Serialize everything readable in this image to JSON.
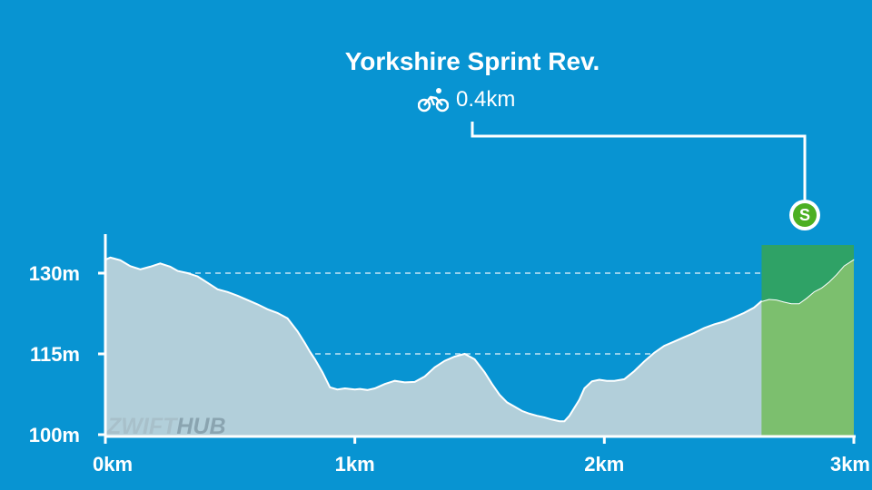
{
  "segment": {
    "title": "Yorkshire Sprint Rev.",
    "distance": "0.4km",
    "icon": "bicycle-icon",
    "badge": "S",
    "badge_color": "#4caf22"
  },
  "watermark": {
    "part1": "ZWIFT",
    "part2": "HUB"
  },
  "colors": {
    "background": "#0894d2",
    "profile_fill": "#b2cfda",
    "segment_fill": "#7cbf6e",
    "segment_overlay": "#2fa266",
    "axis": "#ffffff"
  },
  "chart_data": {
    "type": "area",
    "xlabel": "",
    "ylabel": "",
    "xlim": [
      0,
      3
    ],
    "ylim": [
      97,
      134
    ],
    "x_ticks": [
      0,
      1,
      2,
      3
    ],
    "x_tick_labels": [
      "0km",
      "1km",
      "2km",
      "3km"
    ],
    "y_ticks": [
      100,
      115,
      130
    ],
    "y_tick_labels": [
      "100m",
      "115m",
      "130m"
    ],
    "grid": "dashed horizontal at y ticks",
    "segment_range_km": [
      2.63,
      3.0
    ],
    "series": [
      {
        "x": [
          0,
          0.02,
          0.06,
          0.1,
          0.14,
          0.18,
          0.22,
          0.26,
          0.29,
          0.33,
          0.37,
          0.41,
          0.45,
          0.49,
          0.53,
          0.57,
          0.61,
          0.65,
          0.69,
          0.73,
          0.77,
          0.8,
          0.82,
          0.84,
          0.87,
          0.9,
          0.93,
          0.96,
          0.98,
          1.0,
          1.02,
          1.05,
          1.08,
          1.12,
          1.16,
          1.2,
          1.24,
          1.28,
          1.32,
          1.36,
          1.4,
          1.44,
          1.48,
          1.52,
          1.55,
          1.58,
          1.61,
          1.64,
          1.67,
          1.7,
          1.73,
          1.76,
          1.79,
          1.82,
          1.84,
          1.86,
          1.88,
          1.9,
          1.92,
          1.95,
          1.98,
          2.01,
          2.04,
          2.08,
          2.12,
          2.16,
          2.2,
          2.24,
          2.28,
          2.32,
          2.36,
          2.4,
          2.44,
          2.48,
          2.52,
          2.56,
          2.6,
          2.63,
          2.66,
          2.69,
          2.72,
          2.75,
          2.78,
          2.81,
          2.84,
          2.87,
          2.9,
          2.93,
          2.96,
          3.0
        ],
        "y": [
          132.5,
          132.9,
          132.4,
          131.3,
          130.7,
          131.2,
          131.8,
          131.2,
          130.4,
          130.0,
          129.4,
          128.2,
          127.0,
          126.5,
          125.8,
          125.0,
          124.2,
          123.3,
          122.6,
          121.6,
          119.2,
          117.0,
          115.4,
          114.0,
          111.6,
          108.8,
          108.4,
          108.6,
          108.5,
          108.4,
          108.5,
          108.3,
          108.6,
          109.4,
          110.0,
          109.7,
          109.8,
          110.8,
          112.5,
          113.7,
          114.5,
          115.0,
          114.0,
          111.6,
          109.4,
          107.4,
          106.0,
          105.2,
          104.4,
          103.9,
          103.5,
          103.2,
          102.8,
          102.5,
          102.5,
          103.5,
          105.0,
          106.5,
          108.6,
          109.9,
          110.2,
          110.0,
          110.0,
          110.3,
          111.8,
          113.6,
          115.2,
          116.5,
          117.3,
          118.1,
          118.9,
          119.8,
          120.5,
          121.0,
          121.8,
          122.6,
          123.6,
          124.8,
          125.2,
          125.1,
          124.7,
          124.4,
          124.4,
          125.4,
          126.6,
          127.3,
          128.4,
          129.8,
          131.4,
          132.6
        ]
      }
    ]
  }
}
